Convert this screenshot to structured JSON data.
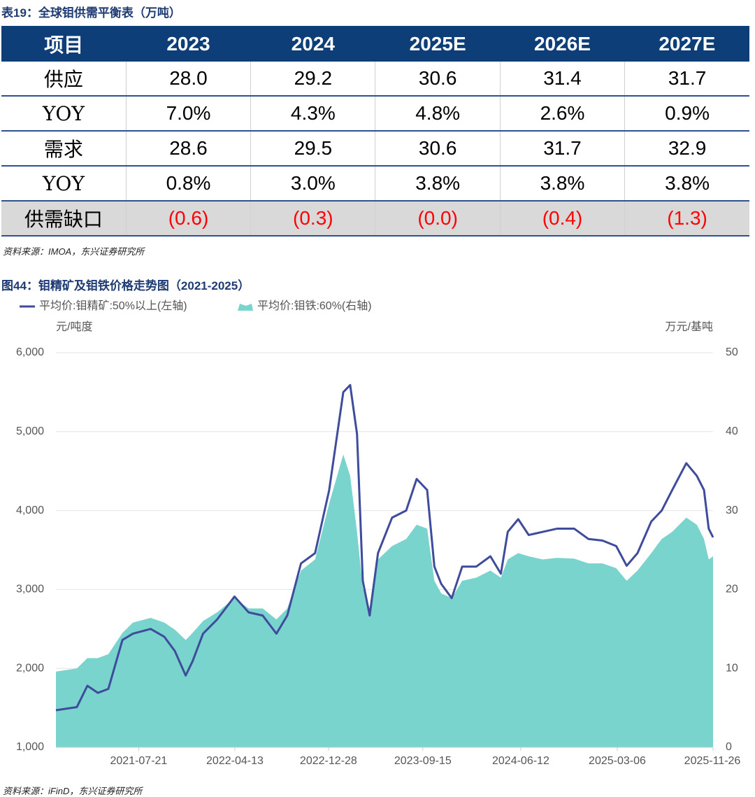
{
  "table_title": "表19：全球钼供需平衡表（万吨）",
  "table": {
    "header": [
      "项目",
      "2023",
      "2024",
      "2025E",
      "2026E",
      "2027E"
    ],
    "rows": [
      [
        "供应",
        "28.0",
        "29.2",
        "30.6",
        "31.4",
        "31.7"
      ],
      [
        "YOY",
        "7.0%",
        "4.3%",
        "4.8%",
        "2.6%",
        "0.9%"
      ],
      [
        "需求",
        "28.6",
        "29.5",
        "30.6",
        "31.7",
        "32.9"
      ],
      [
        "YOY",
        "0.8%",
        "3.0%",
        "3.8%",
        "3.8%",
        "3.8%"
      ],
      [
        "供需缺口",
        "(0.6)",
        "(0.3)",
        "(0.0)",
        "(0.4)",
        "(1.3)"
      ]
    ]
  },
  "table_source": "资料来源：IMOA，东兴证券研究所",
  "chart_data": {
    "type": "line",
    "title": "图44：钼精矿及钼铁价格走势图（2021-2025）",
    "ylabel": "元/吨度",
    "y2label": "万元/基吨",
    "x": [
      "2020-12-04",
      "2021-01-31",
      "2021-03-01",
      "2021-03-30",
      "2021-04-28",
      "2021-06-06",
      "2021-07-05",
      "2021-08-23",
      "2021-09-30",
      "2021-10-29",
      "2021-11-28",
      "2021-12-17",
      "2022-01-15",
      "2022-02-23",
      "2022-04-12",
      "2022-05-21",
      "2022-06-29",
      "2022-08-06",
      "2022-09-05",
      "2022-10-13",
      "2022-11-21",
      "2022-12-30",
      "2023-02-07",
      "2023-02-26",
      "2023-03-17",
      "2023-04-02",
      "2023-04-21",
      "2023-05-14",
      "2023-06-22",
      "2023-07-31",
      "2023-08-29",
      "2023-09-27",
      "2023-10-17",
      "2023-11-05",
      "2023-12-04",
      "2024-01-02",
      "2024-02-10",
      "2024-03-20",
      "2024-04-18",
      "2024-05-07",
      "2024-06-05",
      "2024-07-04",
      "2024-08-12",
      "2024-09-20",
      "2024-11-07",
      "2024-12-16",
      "2025-01-24",
      "2025-03-03",
      "2025-04-01",
      "2025-05-01",
      "2025-06-08",
      "2025-07-07",
      "2025-08-05",
      "2025-09-13",
      "2025-10-12",
      "2025-11-01",
      "2025-11-14",
      "2025-11-26"
    ],
    "series": [
      {
        "name": "平均价:钼精矿:50%以上(左轴)",
        "type": "line",
        "color": "#3f4c9c",
        "values": [
          1470,
          1510,
          1780,
          1690,
          1740,
          2360,
          2440,
          2500,
          2400,
          2220,
          1910,
          2090,
          2440,
          2620,
          2910,
          2710,
          2670,
          2440,
          2670,
          3330,
          3460,
          4260,
          5500,
          5590,
          4970,
          3110,
          2670,
          3460,
          3910,
          4000,
          4400,
          4260,
          3290,
          3070,
          2890,
          3290,
          3290,
          3420,
          3200,
          3730,
          3890,
          3690,
          3730,
          3770,
          3770,
          3640,
          3620,
          3550,
          3300,
          3460,
          3860,
          4000,
          4260,
          4600,
          4440,
          4260,
          3770,
          3660
        ]
      },
      {
        "name": "平均价:钼铁:60%(右轴)",
        "type": "area",
        "axis": "y2",
        "color": "#79d4cd",
        "values": [
          9.6,
          10.0,
          11.3,
          11.3,
          11.8,
          14.5,
          15.8,
          16.4,
          15.8,
          14.9,
          13.6,
          14.5,
          16.0,
          17.1,
          18.9,
          17.6,
          17.6,
          16.2,
          17.6,
          22.4,
          23.8,
          30.9,
          37.1,
          34.4,
          27.3,
          20.2,
          17.6,
          23.8,
          25.5,
          26.4,
          28.2,
          27.7,
          21.1,
          19.5,
          18.9,
          21.1,
          21.5,
          22.4,
          21.5,
          23.8,
          24.6,
          24.2,
          23.8,
          24.0,
          23.9,
          23.3,
          23.3,
          22.7,
          21.1,
          22.4,
          24.6,
          26.4,
          27.3,
          29.1,
          28.2,
          26.4,
          23.8,
          24.2
        ]
      }
    ],
    "xlim": [
      "2020-12-04",
      "2025-11-26"
    ],
    "xticks": [
      "2021-07-21",
      "2022-04-13",
      "2022-12-28",
      "2023-09-15",
      "2024-06-12",
      "2025-03-06",
      "2025-11-26"
    ],
    "ylim": [
      1000,
      6000
    ],
    "yticks": [
      {
        "value": 1000,
        "label": "1,000"
      },
      {
        "value": 2000,
        "label": "2,000"
      },
      {
        "value": 3000,
        "label": "3,000"
      },
      {
        "value": 4000,
        "label": "4,000"
      },
      {
        "value": 5000,
        "label": "5,000"
      },
      {
        "value": 6000,
        "label": "6,000"
      }
    ],
    "y2lim": [
      0,
      50
    ],
    "y2ticks": [
      0,
      10,
      20,
      30,
      40,
      50
    ],
    "grid": true
  },
  "chart_source": "资料来源：iFinD，东兴证券研究所"
}
